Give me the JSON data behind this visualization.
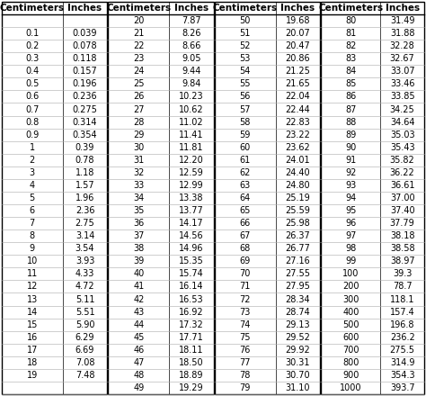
{
  "col1": {
    "cm": [
      "",
      "0.1",
      "0.2",
      "0.3",
      "0.4",
      "0.5",
      "0.6",
      "0.7",
      "0.8",
      "0.9",
      "1",
      "2",
      "3",
      "4",
      "5",
      "6",
      "7",
      "8",
      "9",
      "10",
      "11",
      "12",
      "13",
      "14",
      "15",
      "16",
      "17",
      "18",
      "19"
    ],
    "inches": [
      "",
      "0.039",
      "0.078",
      "0.118",
      "0.157",
      "0.196",
      "0.236",
      "0.275",
      "0.314",
      "0.354",
      "0.39",
      "0.78",
      "1.18",
      "1.57",
      "1.96",
      "2.36",
      "2.75",
      "3.14",
      "3.54",
      "3.93",
      "4.33",
      "4.72",
      "5.11",
      "5.51",
      "5.90",
      "6.29",
      "6.69",
      "7.08",
      "7.48"
    ]
  },
  "col2": {
    "cm": [
      "20",
      "21",
      "22",
      "23",
      "24",
      "25",
      "26",
      "27",
      "28",
      "29",
      "30",
      "31",
      "32",
      "33",
      "34",
      "35",
      "36",
      "37",
      "38",
      "39",
      "40",
      "41",
      "42",
      "43",
      "44",
      "45",
      "46",
      "47",
      "48",
      "49"
    ],
    "inches": [
      "7.87",
      "8.26",
      "8.66",
      "9.05",
      "9.44",
      "9.84",
      "10.23",
      "10.62",
      "11.02",
      "11.41",
      "11.81",
      "12.20",
      "12.59",
      "12.99",
      "13.38",
      "13.77",
      "14.17",
      "14.56",
      "14.96",
      "15.35",
      "15.74",
      "16.14",
      "16.53",
      "16.92",
      "17.32",
      "17.71",
      "18.11",
      "18.50",
      "18.89",
      "19.29"
    ]
  },
  "col3": {
    "cm": [
      "50",
      "51",
      "52",
      "53",
      "54",
      "55",
      "56",
      "57",
      "58",
      "59",
      "60",
      "61",
      "62",
      "63",
      "64",
      "65",
      "66",
      "67",
      "68",
      "69",
      "70",
      "71",
      "72",
      "73",
      "74",
      "75",
      "76",
      "77",
      "78",
      "79"
    ],
    "inches": [
      "19.68",
      "20.07",
      "20.47",
      "20.86",
      "21.25",
      "21.65",
      "22.04",
      "22.44",
      "22.83",
      "23.22",
      "23.62",
      "24.01",
      "24.40",
      "24.80",
      "25.19",
      "25.59",
      "25.98",
      "26.37",
      "26.77",
      "27.16",
      "27.55",
      "27.95",
      "28.34",
      "28.74",
      "29.13",
      "29.52",
      "29.92",
      "30.31",
      "30.70",
      "31.10"
    ]
  },
  "col4": {
    "cm": [
      "80",
      "81",
      "82",
      "83",
      "84",
      "85",
      "86",
      "87",
      "88",
      "89",
      "90",
      "91",
      "92",
      "93",
      "94",
      "95",
      "96",
      "97",
      "98",
      "99",
      "100",
      "200",
      "300",
      "400",
      "500",
      "600",
      "700",
      "800",
      "900",
      "1000"
    ],
    "inches": [
      "31.49",
      "31.88",
      "32.28",
      "32.67",
      "33.07",
      "33.46",
      "33.85",
      "34.25",
      "34.64",
      "35.03",
      "35.43",
      "35.82",
      "36.22",
      "36.61",
      "37.00",
      "37.40",
      "37.79",
      "38.18",
      "38.58",
      "38.97",
      "39.3",
      "78.7",
      "118.1",
      "157.4",
      "196.8",
      "236.2",
      "275.5",
      "314.9",
      "354.3",
      "393.7"
    ]
  },
  "bg_color": "#ffffff",
  "border_color": "#000000",
  "text_color": "#000000",
  "font_size": 7.0,
  "header_font_size": 7.5
}
